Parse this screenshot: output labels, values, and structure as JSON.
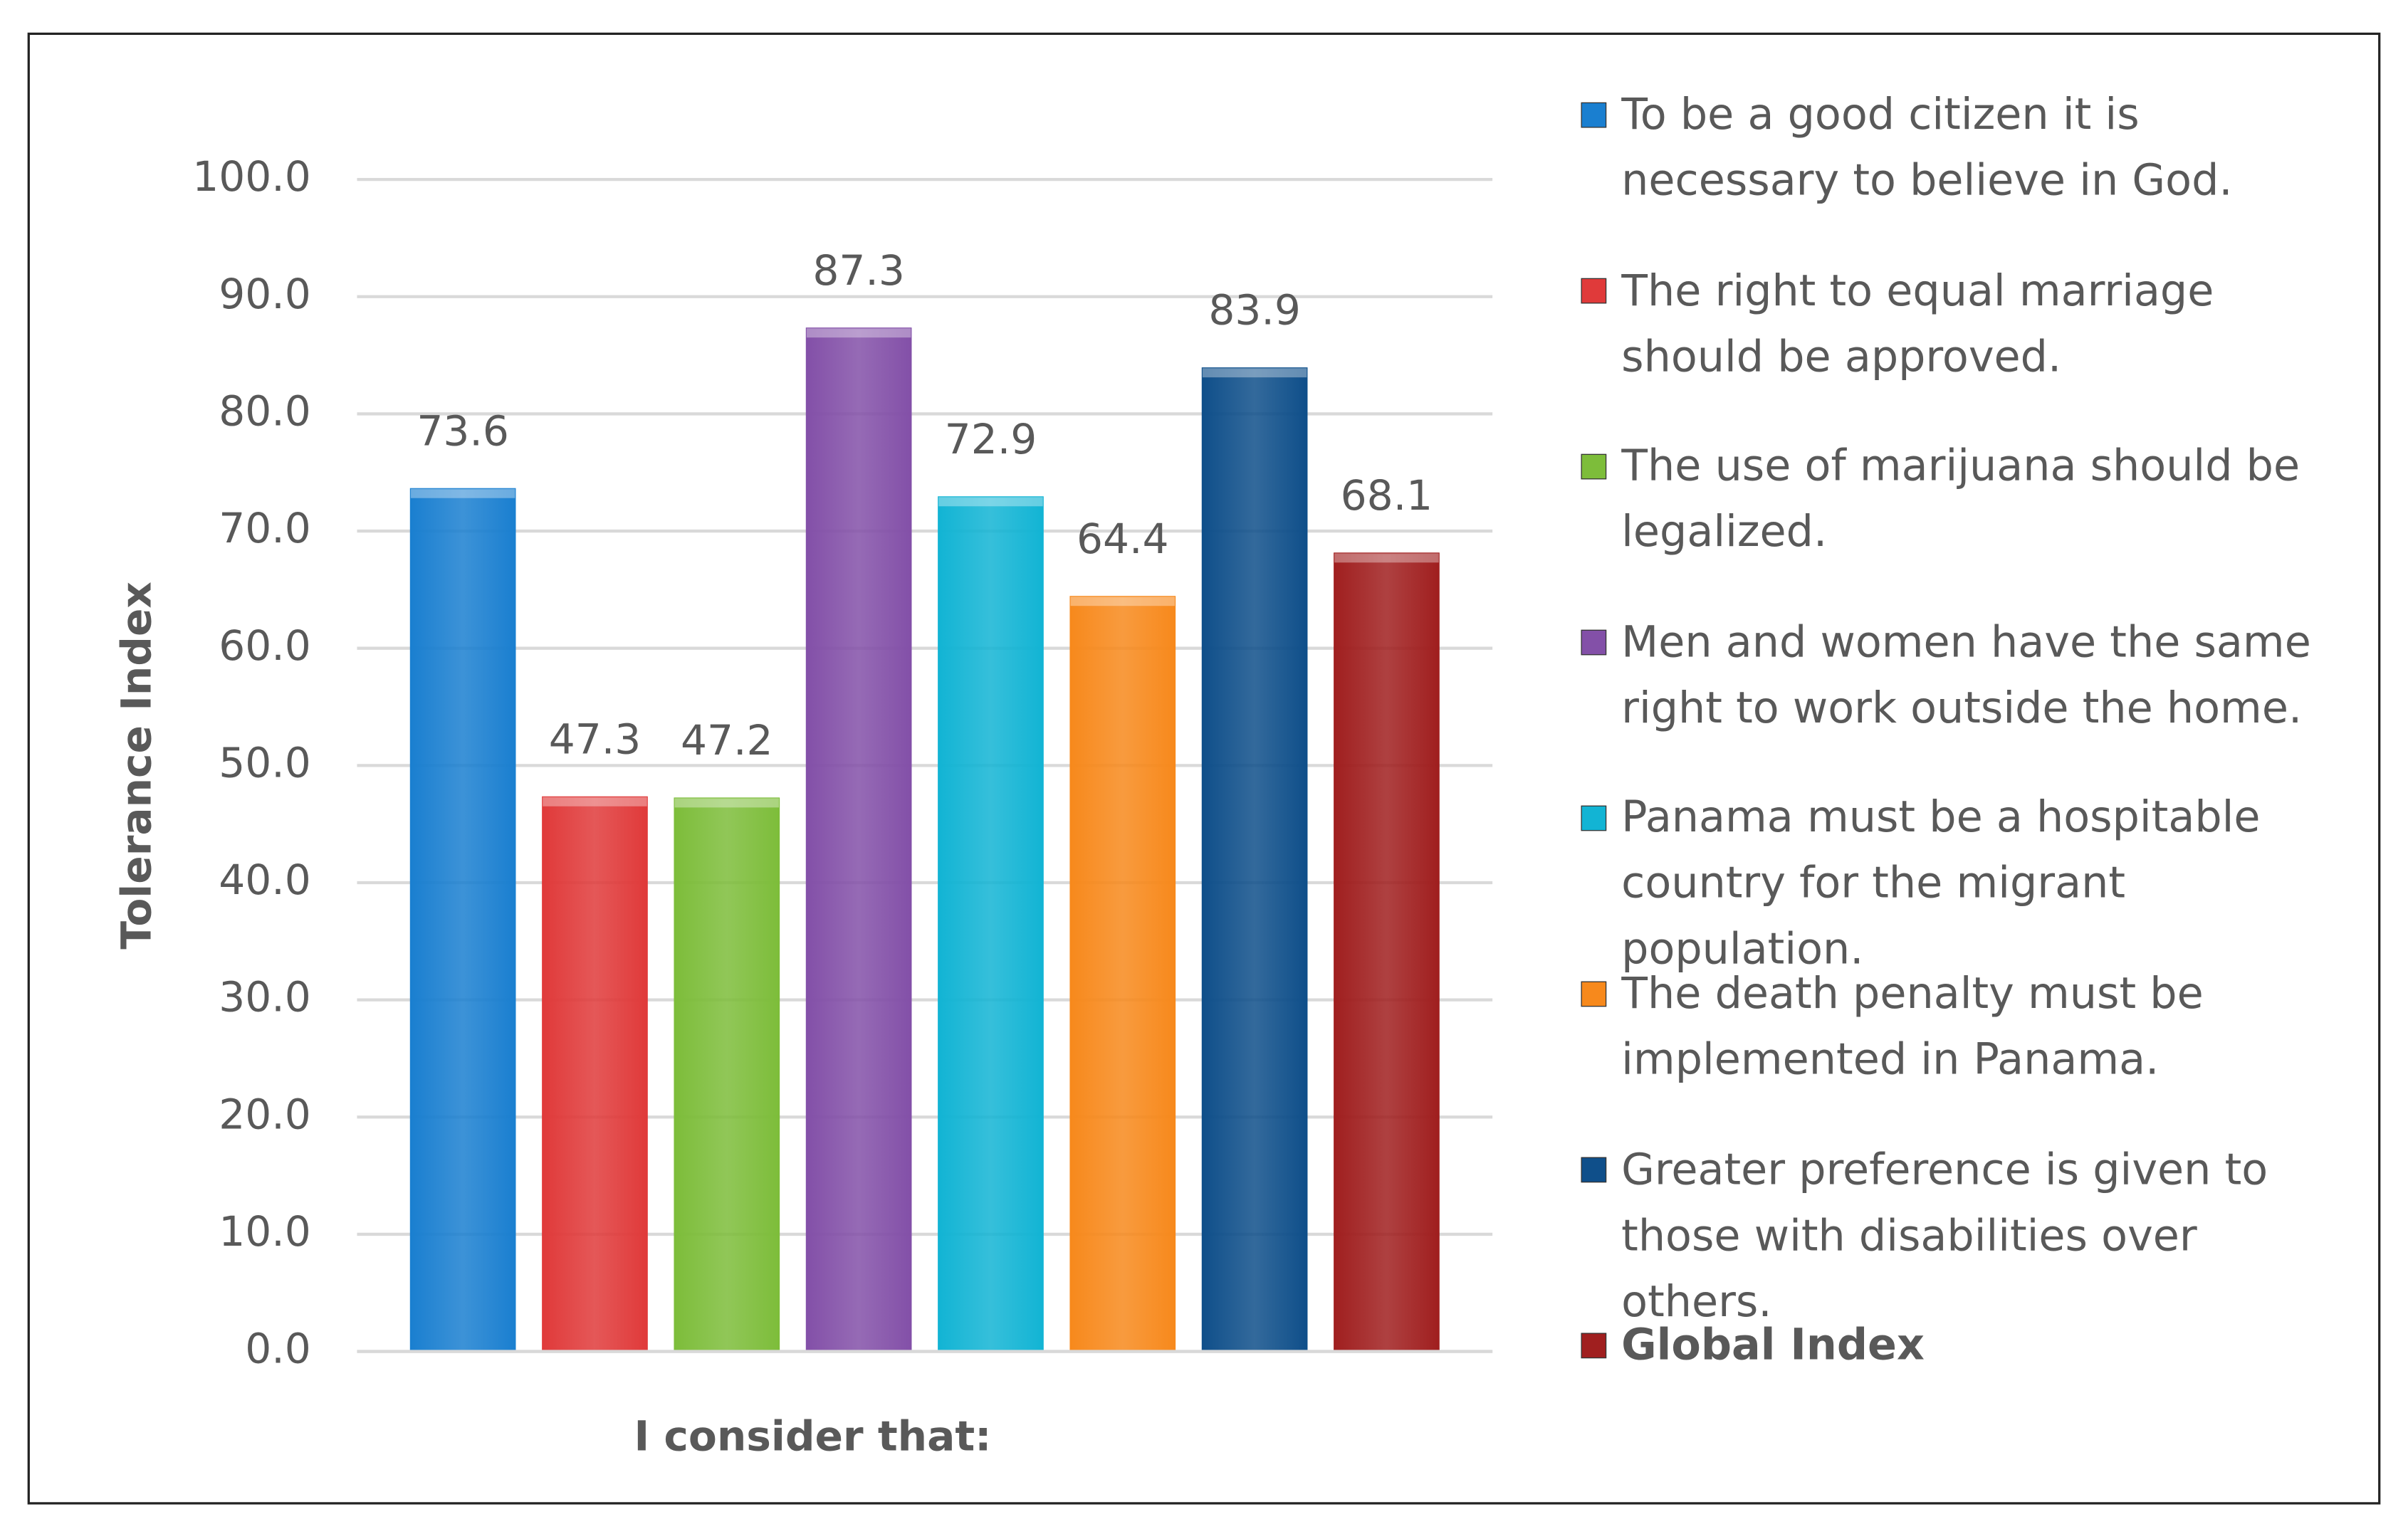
{
  "chart_data": {
    "type": "bar",
    "x_label": "I consider that:",
    "y_label": "Tolerance Index",
    "ylim": [
      0,
      100
    ],
    "yticks": [
      {
        "value": 0,
        "label": "0.0"
      },
      {
        "value": 10,
        "label": "10.0"
      },
      {
        "value": 20,
        "label": "20.0"
      },
      {
        "value": 30,
        "label": "30.0"
      },
      {
        "value": 40,
        "label": "40.0"
      },
      {
        "value": 50,
        "label": "50.0"
      },
      {
        "value": 60,
        "label": "60.0"
      },
      {
        "value": 70,
        "label": "70.0"
      },
      {
        "value": 80,
        "label": "80.0"
      },
      {
        "value": 90,
        "label": "90.0"
      },
      {
        "value": 100,
        "label": "100.0"
      }
    ],
    "grid": true,
    "legend": "right",
    "series": [
      {
        "name": "To be a good citizen it is necessary to believe in God.",
        "color": "#1a7fd0",
        "values": [
          73.6
        ]
      },
      {
        "name": "The right to equal marriage should be approved.",
        "color": "#e03a3a",
        "values": [
          47.3
        ]
      },
      {
        "name": "The use of marijuana should be legalized.",
        "color": "#7dbd3a",
        "values": [
          47.2
        ]
      },
      {
        "name": "Men and women have the same right to work outside the home.",
        "color": "#8350a8",
        "values": [
          87.3
        ]
      },
      {
        "name": "Panama must be a hospitable country for the migrant population.",
        "color": "#12b4d4",
        "values": [
          72.9
        ]
      },
      {
        "name": "The death penalty must be implemented in Panama.",
        "color": "#f7891c",
        "values": [
          64.4
        ]
      },
      {
        "name": "Greater preference is given to those with disabilities over others.",
        "color": "#0f4f8a",
        "values": [
          83.9
        ]
      },
      {
        "name": "Global Index",
        "color": "#a01f1f",
        "values": [
          68.1
        ]
      }
    ]
  }
}
